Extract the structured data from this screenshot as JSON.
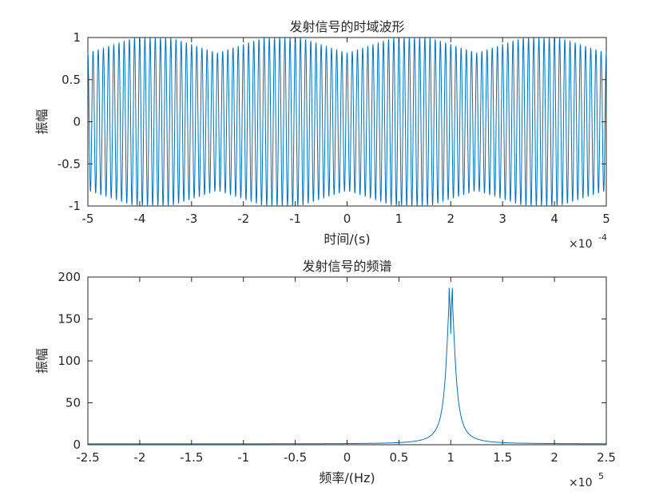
{
  "chart_data": [
    {
      "type": "line",
      "title": "发射信号的时域波形",
      "xlabel": "时间/(s)",
      "ylabel": "振幅",
      "xlim": [
        -5,
        5
      ],
      "ylim": [
        -1,
        1
      ],
      "x_exponent": {
        "base": "×10",
        "power": "-4"
      },
      "x_ticks": [
        -5,
        -4,
        -3,
        -2,
        -1,
        0,
        1,
        2,
        3,
        4,
        5
      ],
      "x_tick_labels": [
        "-5",
        "-4",
        "-3",
        "-2",
        "-1",
        "0",
        "1",
        "2",
        "3",
        "4",
        "5"
      ],
      "y_ticks": [
        -1,
        -0.5,
        0,
        0.5,
        1
      ],
      "y_tick_labels": [
        "-1",
        "-0.5",
        "0",
        "0.5",
        "1"
      ],
      "grid": false,
      "color": "#0072BD",
      "signal": {
        "description_visible": "dense oscillation between -1 and 1",
        "carrier_cycles_per_unit": 10,
        "envelope_dip_min": 0.82,
        "envelope_dip_centers": [
          0,
          -2.5,
          2.5,
          -5,
          5
        ]
      }
    },
    {
      "type": "line",
      "title": "发射信号的频谱",
      "xlabel": "频率/(Hz)",
      "ylabel": "振幅",
      "xlim": [
        -2.5,
        2.5
      ],
      "ylim": [
        0,
        200
      ],
      "x_exponent": {
        "base": "×10",
        "power": "5"
      },
      "x_ticks": [
        -2.5,
        -2,
        -1.5,
        -1,
        -0.5,
        0,
        0.5,
        1,
        1.5,
        2,
        2.5
      ],
      "x_tick_labels": [
        "-2.5",
        "-2",
        "-1.5",
        "-1",
        "-0.5",
        "0",
        "0.5",
        "1",
        "1.5",
        "2",
        "2.5"
      ],
      "y_ticks": [
        0,
        50,
        100,
        150,
        200
      ],
      "y_tick_labels": [
        "0",
        "50",
        "100",
        "150",
        "200"
      ],
      "grid": false,
      "color": "#0072BD",
      "peaks": [
        {
          "x": 0.995,
          "y": 193
        },
        {
          "x": 1.005,
          "y": 193
        }
      ],
      "center_notch": {
        "x": 1.0,
        "y": 132
      },
      "baseline": 1
    }
  ]
}
